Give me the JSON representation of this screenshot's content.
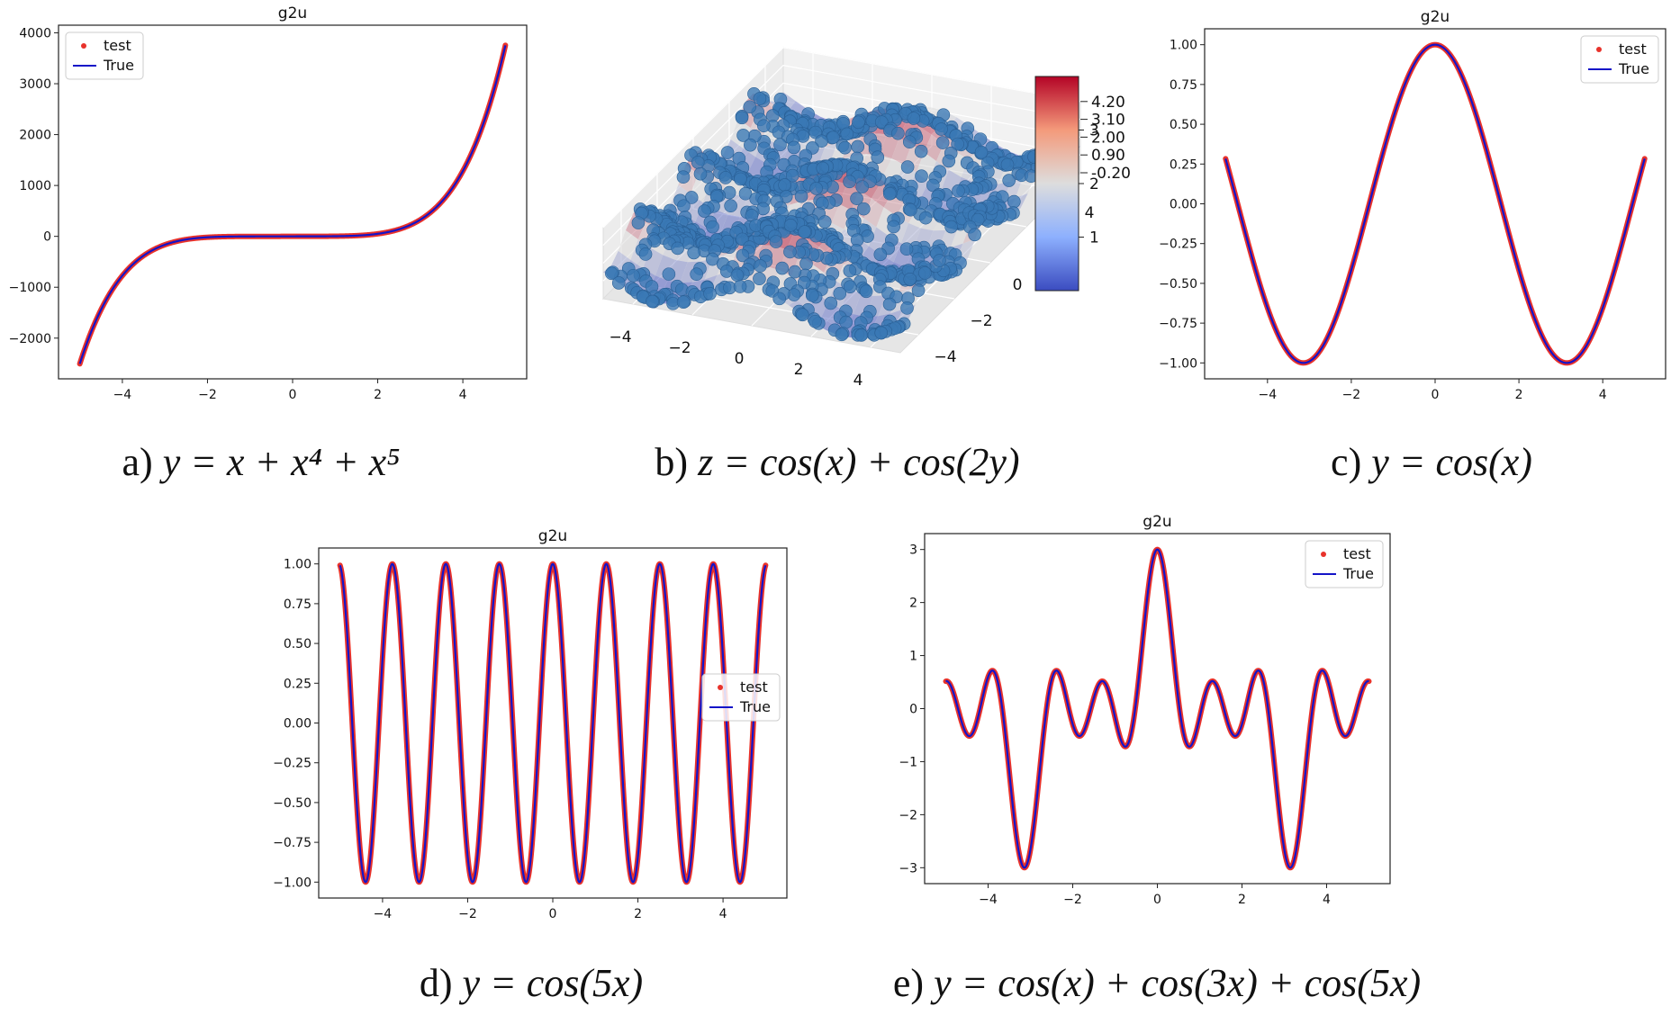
{
  "chart_data": [
    {
      "panel": "a",
      "type": "line",
      "title": "g2u",
      "function": "x + x^4 + x^5",
      "xlim": [
        -5.5,
        5.5
      ],
      "ylim": [
        -2800,
        4150
      ],
      "xticks": [
        -4,
        -2,
        0,
        2,
        4
      ],
      "yticks": [
        -2000,
        -1000,
        0,
        1000,
        2000,
        3000,
        4000
      ],
      "ytick_labels": [
        "−2000",
        "−1000",
        "0",
        "1000",
        "2000",
        "3000",
        "4000"
      ],
      "xtick_labels": [
        "−4",
        "−2",
        "0",
        "2",
        "4"
      ],
      "x_range": [
        -5,
        5
      ],
      "legend": "top-left",
      "series": [
        {
          "name": "test",
          "style": "red-dots",
          "color": "#e8322b"
        },
        {
          "name": "True",
          "style": "line",
          "color": "#1414c8"
        }
      ],
      "caption": {
        "prefix": "a) ",
        "math": "y = x + x⁴ + x⁵"
      }
    },
    {
      "panel": "b",
      "type": "scatter",
      "title": "",
      "function": "cos(x) + cos(2y)",
      "x_range": [
        -5,
        5
      ],
      "y_range": [
        -5,
        5
      ],
      "xtick_labels": [
        "−4",
        "−2",
        "0",
        "2",
        "4"
      ],
      "ytick_labels": [
        "4",
        "2",
        "0",
        "−2",
        "−4"
      ],
      "ztick_labels": [
        "4.20",
        "3.10",
        "2.00",
        "0.90",
        "-0.20"
      ],
      "colorbar_ticks": [
        "3",
        "2",
        "1"
      ],
      "colorbar_range": [
        0,
        4
      ],
      "point_color": "#3a78b5",
      "caption": {
        "prefix": "b) ",
        "math": "z = cos(x) + cos(2y)"
      }
    },
    {
      "panel": "c",
      "type": "line",
      "title": "g2u",
      "function": "cos(x)",
      "xlim": [
        -5.5,
        5.5
      ],
      "ylim": [
        -1.1,
        1.1
      ],
      "xticks": [
        -4,
        -2,
        0,
        2,
        4
      ],
      "yticks": [
        -1.0,
        -0.75,
        -0.5,
        -0.25,
        0.0,
        0.25,
        0.5,
        0.75,
        1.0
      ],
      "ytick_labels": [
        "−1.00",
        "−0.75",
        "−0.50",
        "−0.25",
        "0.00",
        "0.25",
        "0.50",
        "0.75",
        "1.00"
      ],
      "xtick_labels": [
        "−4",
        "−2",
        "0",
        "2",
        "4"
      ],
      "x_range": [
        -5,
        5
      ],
      "legend": "top-right",
      "series": [
        {
          "name": "test",
          "style": "red-dots",
          "color": "#e8322b"
        },
        {
          "name": "True",
          "style": "line",
          "color": "#1414c8"
        }
      ],
      "caption": {
        "prefix": "c) ",
        "math": "y = cos(x)"
      }
    },
    {
      "panel": "d",
      "type": "line",
      "title": "g2u",
      "function": "cos(5x)",
      "xlim": [
        -5.5,
        5.5
      ],
      "ylim": [
        -1.1,
        1.1
      ],
      "xticks": [
        -4,
        -2,
        0,
        2,
        4
      ],
      "yticks": [
        -1.0,
        -0.75,
        -0.5,
        -0.25,
        0.0,
        0.25,
        0.5,
        0.75,
        1.0
      ],
      "ytick_labels": [
        "−1.00",
        "−0.75",
        "−0.50",
        "−0.25",
        "0.00",
        "0.25",
        "0.50",
        "0.75",
        "1.00"
      ],
      "xtick_labels": [
        "−4",
        "−2",
        "0",
        "2",
        "4"
      ],
      "x_range": [
        -5,
        5
      ],
      "legend": "center-right",
      "series": [
        {
          "name": "test",
          "style": "red-dots",
          "color": "#e8322b"
        },
        {
          "name": "True",
          "style": "line",
          "color": "#1414c8"
        }
      ],
      "caption": {
        "prefix": "d) ",
        "math": "y = cos(5x)"
      }
    },
    {
      "panel": "e",
      "type": "line",
      "title": "g2u",
      "function": "cos(x) + cos(3x) + cos(5x)",
      "xlim": [
        -5.5,
        5.5
      ],
      "ylim": [
        -3.3,
        3.3
      ],
      "xticks": [
        -4,
        -2,
        0,
        2,
        4
      ],
      "yticks": [
        -3,
        -2,
        -1,
        0,
        1,
        2,
        3
      ],
      "ytick_labels": [
        "−3",
        "−2",
        "−1",
        "0",
        "1",
        "2",
        "3"
      ],
      "xtick_labels": [
        "−4",
        "−2",
        "0",
        "2",
        "4"
      ],
      "x_range": [
        -5,
        5
      ],
      "legend": "top-right",
      "series": [
        {
          "name": "test",
          "style": "red-dots",
          "color": "#e8322b"
        },
        {
          "name": "True",
          "style": "line",
          "color": "#1414c8"
        }
      ],
      "caption": {
        "prefix": "e) ",
        "math": "y = cos(x) + cos(3x) + cos(5x)"
      }
    }
  ]
}
